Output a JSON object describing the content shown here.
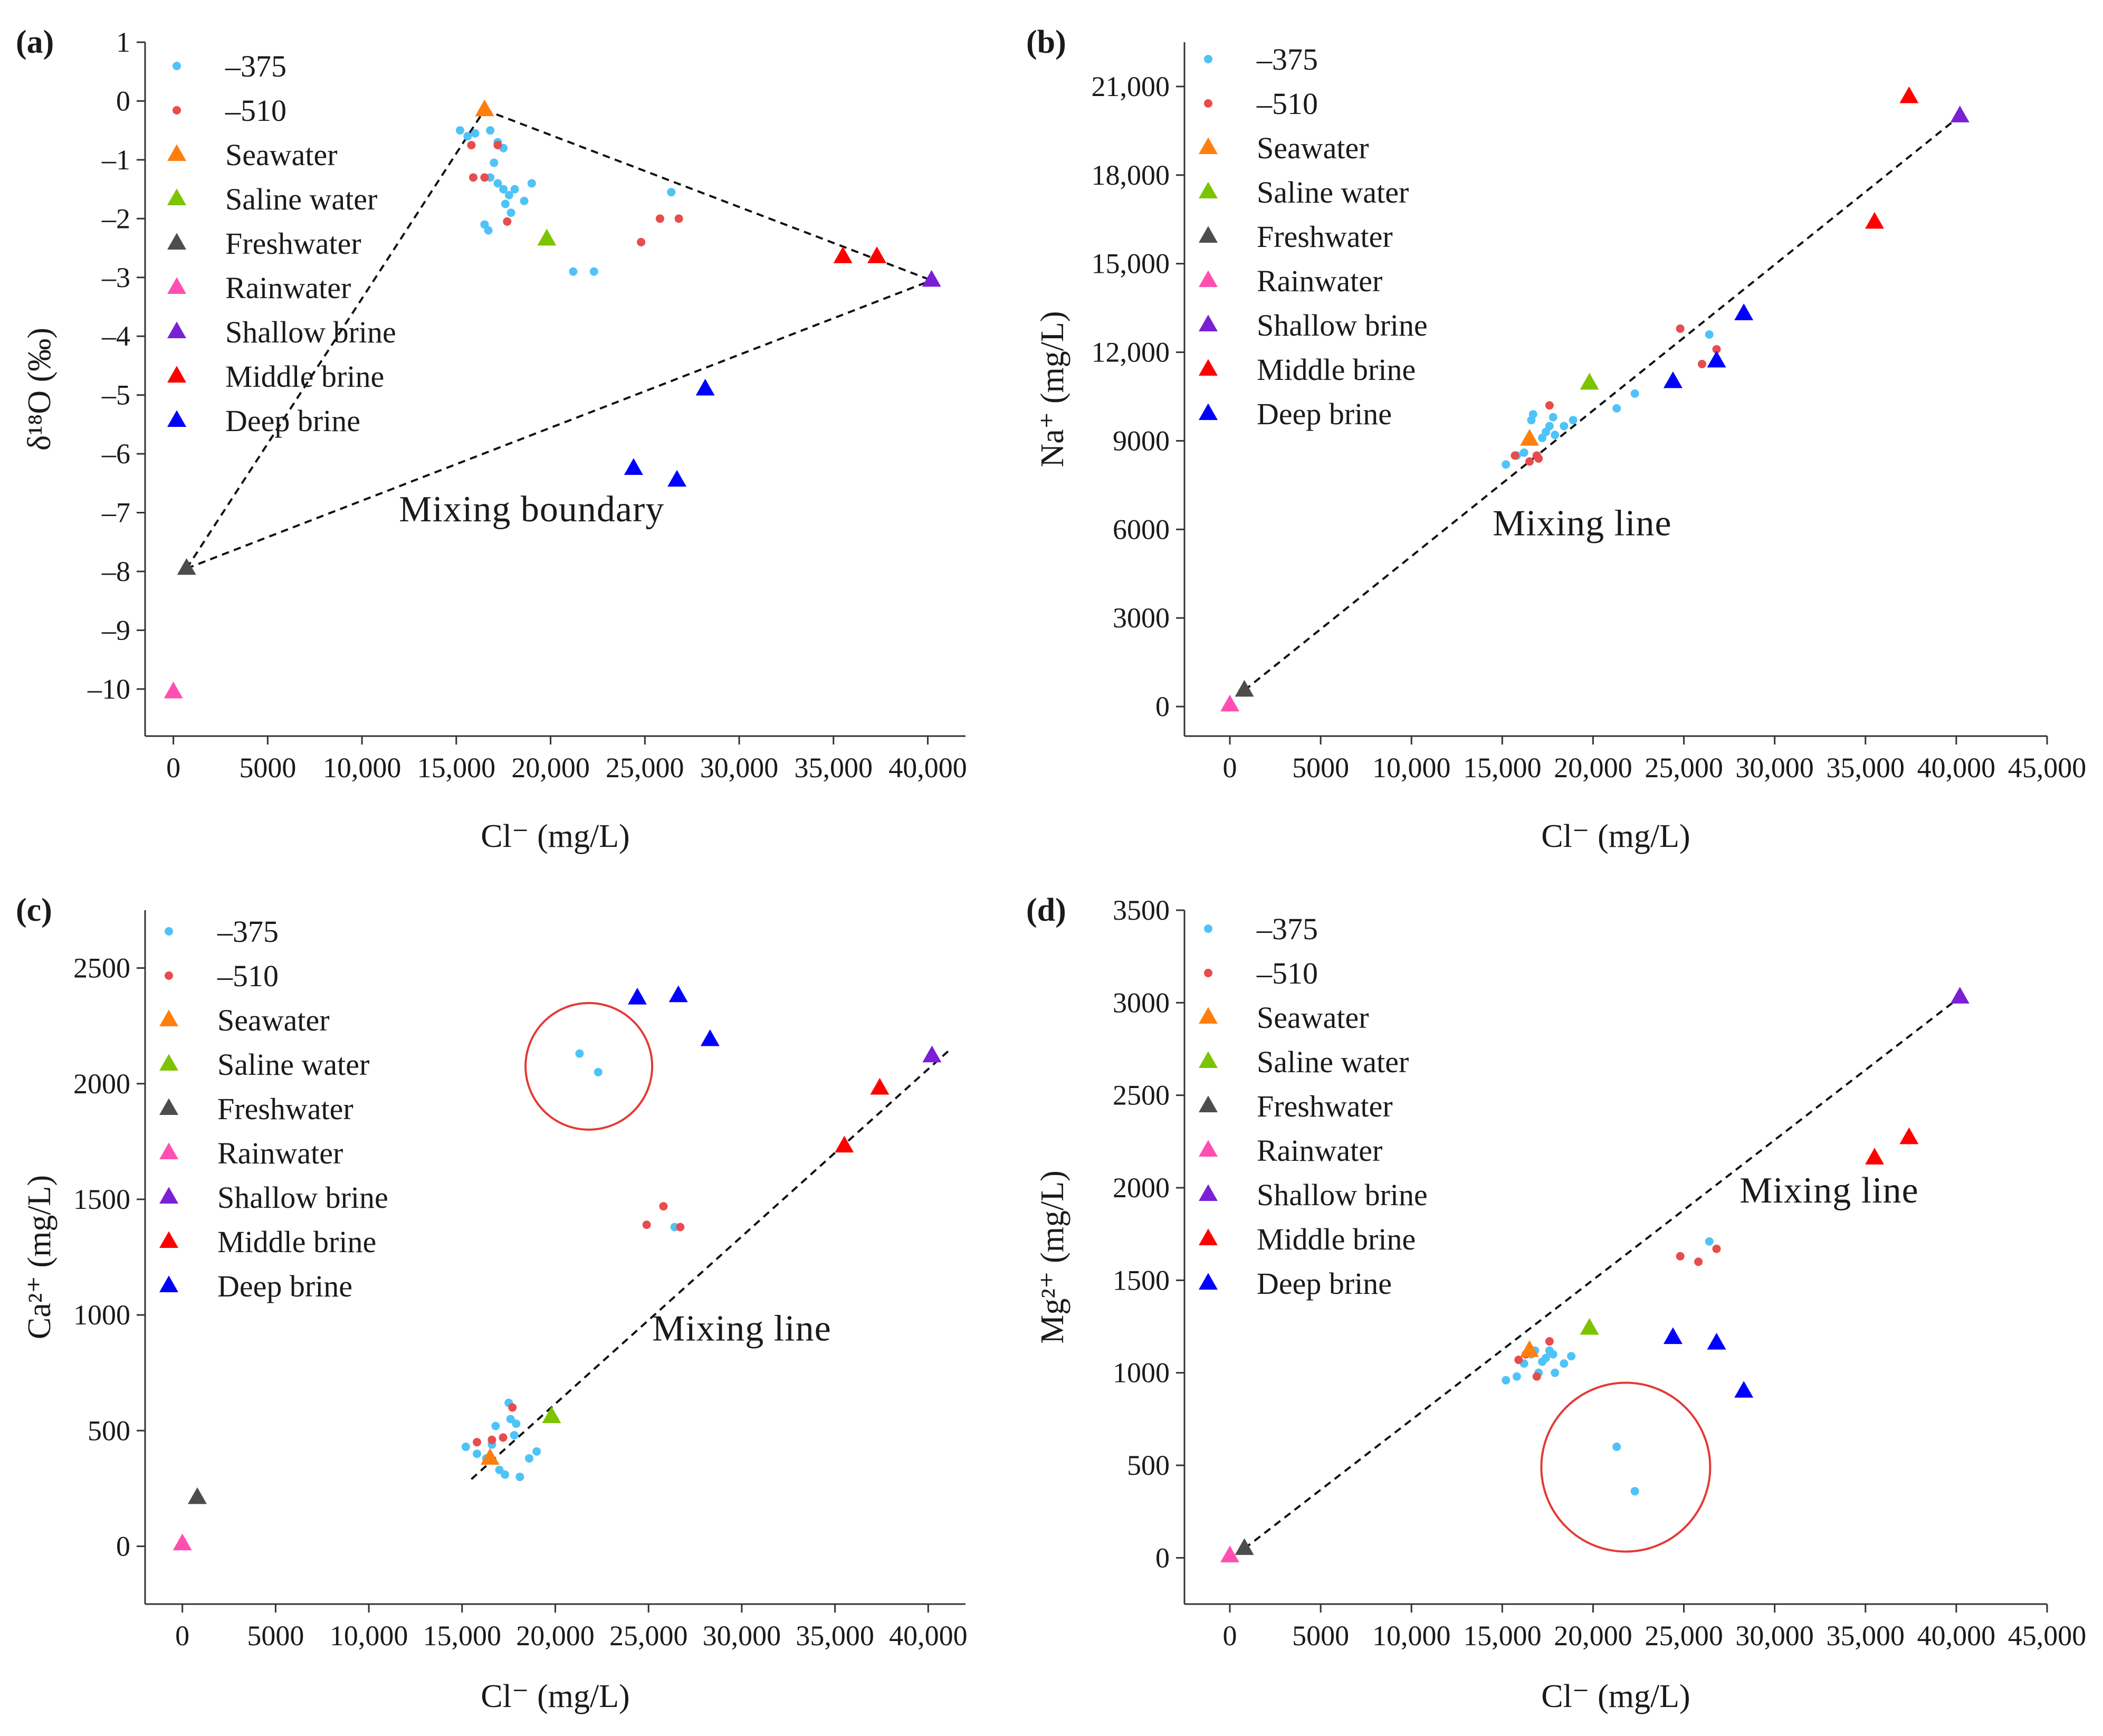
{
  "figure": {
    "legend_entries": [
      {
        "label": "–375",
        "marker": "dot",
        "color": "#4fc3f7"
      },
      {
        "label": "–510",
        "marker": "dot",
        "color": "#e84c4c"
      },
      {
        "label": "Seawater",
        "marker": "triangle",
        "color": "#ff7f0e"
      },
      {
        "label": "Saline water",
        "marker": "triangle",
        "color": "#7cc400"
      },
      {
        "label": "Freshwater",
        "marker": "triangle",
        "color": "#4d4d4d"
      },
      {
        "label": "Rainwater",
        "marker": "triangle",
        "color": "#ff4fb0"
      },
      {
        "label": "Shallow brine",
        "marker": "triangle",
        "color": "#7b1fd6"
      },
      {
        "label": "Middle brine",
        "marker": "triangle",
        "color": "#ff0000"
      },
      {
        "label": "Deep brine",
        "marker": "triangle",
        "color": "#0000ff"
      }
    ],
    "circle_color": "#e53935"
  },
  "chart_data": [
    {
      "id": "a",
      "panel_label": "(a)",
      "type": "scatter",
      "xlabel": "Cl⁻ (mg/L)",
      "ylabel": "δ¹⁸O (‰)",
      "xlim": [
        -1500,
        42000
      ],
      "ylim": [
        -10.8,
        1
      ],
      "xticks": [
        0,
        5000,
        10000,
        15000,
        20000,
        25000,
        30000,
        35000,
        40000
      ],
      "xtick_labels": [
        "0",
        "5000",
        "10,000",
        "15,000",
        "20,000",
        "25,000",
        "30,000",
        "35,000",
        "40,000"
      ],
      "yticks": [
        1,
        0,
        -1,
        -2,
        -3,
        -4,
        -5,
        -6,
        -7,
        -8,
        -9,
        -10
      ],
      "ytick_labels": [
        "1",
        "0",
        "–1",
        "–2",
        "–3",
        "–4",
        "–5",
        "–6",
        "–7",
        "–8",
        "–9",
        "–10"
      ],
      "series": {
        "s375": [
          [
            15200,
            -0.5
          ],
          [
            15600,
            -0.6
          ],
          [
            16000,
            -0.55
          ],
          [
            16800,
            -0.5
          ],
          [
            17200,
            -0.7
          ],
          [
            17500,
            -0.8
          ],
          [
            17000,
            -1.05
          ],
          [
            16800,
            -1.3
          ],
          [
            17200,
            -1.4
          ],
          [
            17500,
            -1.5
          ],
          [
            17800,
            -1.6
          ],
          [
            18100,
            -1.5
          ],
          [
            17600,
            -1.75
          ],
          [
            17900,
            -1.9
          ],
          [
            18600,
            -1.7
          ],
          [
            19000,
            -1.4
          ],
          [
            16500,
            -2.1
          ],
          [
            16700,
            -2.2
          ],
          [
            21200,
            -2.9
          ],
          [
            22300,
            -2.9
          ],
          [
            26400,
            -1.55
          ]
        ],
        "s510": [
          [
            15800,
            -0.75
          ],
          [
            17200,
            -0.75
          ],
          [
            15900,
            -1.3
          ],
          [
            16500,
            -1.3
          ],
          [
            17700,
            -2.05
          ],
          [
            24800,
            -2.4
          ],
          [
            25800,
            -2.0
          ],
          [
            26800,
            -2.0
          ]
        ],
        "Seawater": [
          [
            16500,
            -0.15
          ]
        ],
        "Saline water": [
          [
            19800,
            -2.35
          ]
        ],
        "Freshwater": [
          [
            700,
            -7.95
          ]
        ],
        "Rainwater": [
          [
            0,
            -10.05
          ]
        ],
        "Shallow brine": [
          [
            40200,
            -3.05
          ]
        ],
        "Middle brine": [
          [
            35500,
            -2.65
          ],
          [
            37300,
            -2.65
          ]
        ],
        "Deep brine": [
          [
            24400,
            -6.25
          ],
          [
            26700,
            -6.45
          ],
          [
            28200,
            -4.9
          ]
        ]
      },
      "lines": [
        [
          [
            700,
            -7.95
          ],
          [
            16500,
            -0.15
          ]
        ],
        [
          [
            16500,
            -0.15
          ],
          [
            40200,
            -3.05
          ]
        ],
        [
          [
            700,
            -7.95
          ],
          [
            40200,
            -3.05
          ]
        ]
      ],
      "annotation": {
        "text": "Mixing boundary",
        "x": 19000,
        "y": -7.15
      },
      "circles": []
    },
    {
      "id": "b",
      "panel_label": "(b)",
      "type": "scatter",
      "xlabel": "Cl⁻ (mg/L)",
      "ylabel": "Na⁺ (mg/L)",
      "xlim": [
        -2500,
        45000
      ],
      "ylim": [
        -1000,
        22500
      ],
      "xticks": [
        0,
        5000,
        10000,
        15000,
        20000,
        25000,
        30000,
        35000,
        40000,
        45000
      ],
      "xtick_labels": [
        "0",
        "5000",
        "10,000",
        "15,000",
        "20,000",
        "25,000",
        "30,000",
        "35,000",
        "40,000",
        "45,000"
      ],
      "yticks": [
        0,
        3000,
        6000,
        9000,
        12000,
        15000,
        18000,
        21000
      ],
      "ytick_labels": [
        "0",
        "3000",
        "6000",
        "9000",
        "12,000",
        "15,000",
        "18,000",
        "21,000"
      ],
      "series": {
        "s375": [
          [
            15200,
            8200
          ],
          [
            15800,
            8500
          ],
          [
            16200,
            8600
          ],
          [
            16600,
            9700
          ],
          [
            16700,
            9900
          ],
          [
            17200,
            9100
          ],
          [
            17400,
            9300
          ],
          [
            17600,
            9500
          ],
          [
            17800,
            9800
          ],
          [
            17900,
            9200
          ],
          [
            18400,
            9500
          ],
          [
            18900,
            9700
          ],
          [
            21300,
            10100
          ],
          [
            22300,
            10600
          ],
          [
            26400,
            12600
          ]
        ],
        "s510": [
          [
            15700,
            8500
          ],
          [
            16500,
            8300
          ],
          [
            16900,
            8500
          ],
          [
            17000,
            8400
          ],
          [
            17600,
            10200
          ],
          [
            24800,
            12800
          ],
          [
            26000,
            11600
          ],
          [
            26800,
            12100
          ]
        ],
        "Seawater": [
          [
            16500,
            9050
          ]
        ],
        "Saline water": [
          [
            19800,
            10950
          ]
        ],
        "Freshwater": [
          [
            800,
            550
          ]
        ],
        "Rainwater": [
          [
            0,
            50
          ]
        ],
        "Shallow brine": [
          [
            40200,
            20000
          ]
        ],
        "Middle brine": [
          [
            35500,
            16400
          ],
          [
            37400,
            20650
          ]
        ],
        "Deep brine": [
          [
            24400,
            11000
          ],
          [
            26800,
            11700
          ],
          [
            28300,
            13300
          ]
        ]
      },
      "lines": [
        [
          [
            800,
            550
          ],
          [
            40200,
            20000
          ]
        ]
      ],
      "annotation": {
        "text": "Mixing line",
        "x": 19400,
        "y": 5800
      },
      "circles": []
    },
    {
      "id": "c",
      "panel_label": "(c)",
      "type": "scatter",
      "xlabel": "Cl⁻ (mg/L)",
      "ylabel": "Ca²⁺ (mg/L)",
      "xlim": [
        -2000,
        42000
      ],
      "ylim": [
        -250,
        2750
      ],
      "xticks": [
        0,
        5000,
        10000,
        15000,
        20000,
        25000,
        30000,
        35000,
        40000
      ],
      "xtick_labels": [
        "0",
        "5000",
        "10,000",
        "15,000",
        "20,000",
        "25,000",
        "30,000",
        "35,000",
        "40,000"
      ],
      "yticks": [
        0,
        500,
        1000,
        1500,
        2000,
        2500
      ],
      "ytick_labels": [
        "0",
        "500",
        "1000",
        "1500",
        "2000",
        "2500"
      ],
      "series": {
        "s375": [
          [
            15200,
            430
          ],
          [
            15800,
            400
          ],
          [
            16300,
            380
          ],
          [
            16600,
            440
          ],
          [
            16800,
            520
          ],
          [
            17000,
            330
          ],
          [
            17300,
            310
          ],
          [
            17500,
            620
          ],
          [
            17600,
            550
          ],
          [
            17800,
            480
          ],
          [
            17900,
            530
          ],
          [
            18100,
            300
          ],
          [
            18600,
            380
          ],
          [
            19000,
            410
          ],
          [
            21300,
            2130
          ],
          [
            22300,
            2050
          ],
          [
            26400,
            1380
          ]
        ],
        "s510": [
          [
            15800,
            450
          ],
          [
            16600,
            460
          ],
          [
            17200,
            470
          ],
          [
            17700,
            600
          ],
          [
            24900,
            1390
          ],
          [
            25800,
            1470
          ],
          [
            26700,
            1380
          ]
        ],
        "Seawater": [
          [
            16500,
            380
          ]
        ],
        "Saline water": [
          [
            19800,
            560
          ]
        ],
        "Freshwater": [
          [
            800,
            210
          ]
        ],
        "Rainwater": [
          [
            0,
            10
          ]
        ],
        "Shallow brine": [
          [
            40200,
            2120
          ]
        ],
        "Middle brine": [
          [
            35500,
            1730
          ],
          [
            37400,
            1980
          ]
        ],
        "Deep brine": [
          [
            24400,
            2370
          ],
          [
            26600,
            2380
          ],
          [
            28300,
            2190
          ]
        ]
      },
      "lines": [
        [
          [
            15500,
            290
          ],
          [
            41200,
            2150
          ]
        ]
      ],
      "annotation": {
        "text": "Mixing line",
        "x": 30000,
        "y": 890
      },
      "circles": [
        {
          "x": 21800,
          "y": 2075,
          "r": 60
        }
      ]
    },
    {
      "id": "d",
      "panel_label": "(d)",
      "type": "scatter",
      "xlabel": "Cl⁻ (mg/L)",
      "ylabel": "Mg²⁺ (mg/L)",
      "xlim": [
        -2500,
        45000
      ],
      "ylim": [
        -250,
        3500
      ],
      "xticks": [
        0,
        5000,
        10000,
        15000,
        20000,
        25000,
        30000,
        35000,
        40000,
        45000
      ],
      "xtick_labels": [
        "0",
        "5000",
        "10,000",
        "15,000",
        "20,000",
        "25,000",
        "30,000",
        "35,000",
        "40,000",
        "45,000"
      ],
      "yticks": [
        0,
        500,
        1000,
        1500,
        2000,
        2500,
        3000,
        3500
      ],
      "ytick_labels": [
        "0",
        "500",
        "1000",
        "1500",
        "2000",
        "2500",
        "3000",
        "3500"
      ],
      "series": {
        "s375": [
          [
            15200,
            960
          ],
          [
            15800,
            980
          ],
          [
            16200,
            1050
          ],
          [
            16600,
            1100
          ],
          [
            16800,
            1120
          ],
          [
            17000,
            1000
          ],
          [
            17200,
            1060
          ],
          [
            17400,
            1080
          ],
          [
            17600,
            1120
          ],
          [
            17800,
            1100
          ],
          [
            17900,
            1000
          ],
          [
            18400,
            1050
          ],
          [
            18800,
            1090
          ],
          [
            21300,
            600
          ],
          [
            22300,
            360
          ],
          [
            26400,
            1710
          ]
        ],
        "s510": [
          [
            15900,
            1070
          ],
          [
            16300,
            1100
          ],
          [
            16900,
            980
          ],
          [
            17600,
            1170
          ],
          [
            24800,
            1630
          ],
          [
            25800,
            1600
          ],
          [
            26800,
            1670
          ]
        ],
        "Seawater": [
          [
            16500,
            1120
          ]
        ],
        "Saline water": [
          [
            19800,
            1240
          ]
        ],
        "Freshwater": [
          [
            800,
            50
          ]
        ],
        "Rainwater": [
          [
            0,
            10
          ]
        ],
        "Shallow brine": [
          [
            40200,
            3030
          ]
        ],
        "Middle brine": [
          [
            35500,
            2160
          ],
          [
            37400,
            2270
          ]
        ],
        "Deep brine": [
          [
            24400,
            1190
          ],
          [
            26800,
            1160
          ],
          [
            28300,
            900
          ]
        ]
      },
      "lines": [
        [
          [
            800,
            50
          ],
          [
            40200,
            3030
          ]
        ]
      ],
      "annotation": {
        "text": "Mixing line",
        "x": 33000,
        "y": 1920
      },
      "circles": [
        {
          "x": 21800,
          "y": 490,
          "r": 80
        }
      ]
    }
  ]
}
